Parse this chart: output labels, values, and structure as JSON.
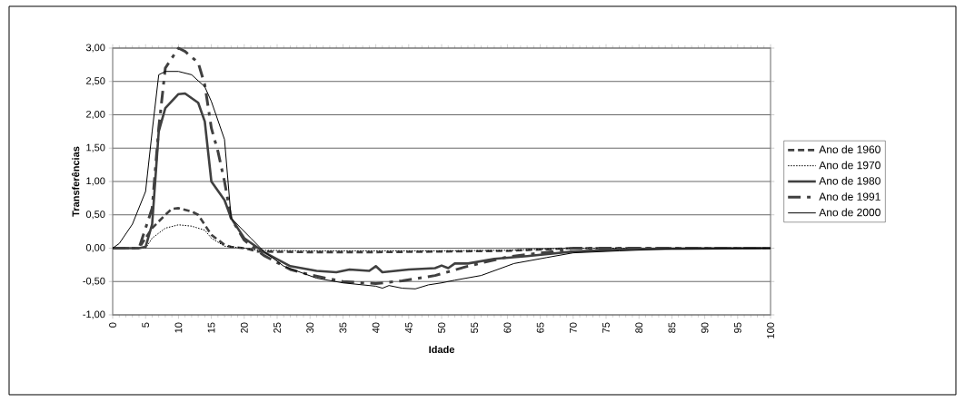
{
  "chart_data": {
    "type": "line",
    "xlabel": "Idade",
    "ylabel": "Transferências",
    "xlim": [
      0,
      100
    ],
    "xticks": [
      0,
      5,
      10,
      15,
      20,
      25,
      30,
      35,
      40,
      45,
      50,
      55,
      60,
      65,
      70,
      75,
      80,
      85,
      90,
      95,
      100
    ],
    "ylim": [
      -1,
      3
    ],
    "yticks": [
      {
        "value": -1,
        "label": "-1,00"
      },
      {
        "value": -0.5,
        "label": "-0,50"
      },
      {
        "value": 0,
        "label": "0,00"
      },
      {
        "value": 0.5,
        "label": "0,50"
      },
      {
        "value": 1,
        "label": "1,00"
      },
      {
        "value": 1.5,
        "label": "1,50"
      },
      {
        "value": 2,
        "label": "2,00"
      },
      {
        "value": 2.5,
        "label": "2,50"
      },
      {
        "value": 3,
        "label": "3,00"
      }
    ],
    "grid": "y",
    "legend": "right",
    "marker": "none",
    "series": [
      {
        "name": "Ano de 1960",
        "color": "#404040",
        "line_style": "dashed",
        "x": [
          0,
          4,
          6,
          8,
          9,
          10,
          12,
          13,
          15,
          17,
          18,
          20,
          22,
          30,
          40,
          50,
          60,
          65,
          70,
          100
        ],
        "values": [
          0,
          0,
          0.3,
          0.5,
          0.59,
          0.6,
          0.55,
          0.5,
          0.2,
          0.05,
          0.02,
          0,
          -0.05,
          -0.06,
          -0.06,
          -0.05,
          -0.04,
          -0.02,
          0,
          0
        ]
      },
      {
        "name": "Ano de 1970",
        "color": "#000000",
        "line_style": "dotted",
        "x": [
          0,
          5,
          6,
          8,
          10,
          12,
          14,
          15,
          17,
          20,
          22,
          30,
          40,
          50,
          60,
          70,
          100
        ],
        "values": [
          0,
          0,
          0.15,
          0.3,
          0.35,
          0.33,
          0.27,
          0.15,
          0.03,
          0,
          -0.03,
          -0.04,
          -0.04,
          -0.04,
          -0.03,
          0,
          0
        ]
      },
      {
        "name": "Ano de 1980",
        "color": "#404040",
        "line_style": "solid",
        "x": [
          0,
          4,
          5,
          6,
          7,
          8,
          10,
          11,
          13,
          14,
          15,
          17,
          18,
          20,
          23,
          27,
          31,
          34,
          36,
          39,
          40,
          41,
          45,
          49,
          50,
          51,
          52,
          54,
          58,
          63,
          70,
          80,
          100
        ],
        "values": [
          0,
          0,
          0.02,
          0.36,
          1.75,
          2.1,
          2.31,
          2.32,
          2.18,
          1.9,
          1.0,
          0.72,
          0.45,
          0.15,
          -0.06,
          -0.27,
          -0.34,
          -0.36,
          -0.32,
          -0.34,
          -0.27,
          -0.36,
          -0.32,
          -0.3,
          -0.26,
          -0.3,
          -0.23,
          -0.23,
          -0.16,
          -0.12,
          -0.05,
          -0.01,
          0
        ]
      },
      {
        "name": "Ano de 1991",
        "color": "#404040",
        "line_style": "dashed",
        "x": [
          0,
          4,
          5,
          6,
          7,
          8,
          10,
          11,
          13,
          14,
          15,
          16,
          17,
          18,
          20,
          23,
          27,
          30,
          35,
          40,
          44,
          49,
          54,
          60,
          67,
          70,
          80,
          100
        ],
        "values": [
          0,
          0,
          0.3,
          0.6,
          1.8,
          2.7,
          3.0,
          2.95,
          2.78,
          2.45,
          1.8,
          1.45,
          1.0,
          0.45,
          0.12,
          -0.11,
          -0.32,
          -0.4,
          -0.5,
          -0.53,
          -0.49,
          -0.41,
          -0.27,
          -0.13,
          -0.05,
          0,
          0,
          0
        ]
      },
      {
        "name": "Ano de 2000",
        "color": "#000000",
        "line_style": "solid",
        "x": [
          0,
          1,
          3,
          5,
          6,
          7,
          8,
          10,
          12,
          14,
          15,
          17,
          18,
          21,
          23,
          26,
          31,
          35,
          40,
          41,
          42,
          44,
          46,
          48,
          50,
          52,
          56,
          61,
          66,
          70,
          77,
          85,
          100
        ],
        "values": [
          0,
          0.07,
          0.36,
          0.85,
          1.75,
          2.6,
          2.65,
          2.65,
          2.6,
          2.42,
          2.2,
          1.63,
          0.45,
          0.15,
          -0.05,
          -0.27,
          -0.45,
          -0.52,
          -0.57,
          -0.6,
          -0.56,
          -0.6,
          -0.61,
          -0.55,
          -0.52,
          -0.48,
          -0.41,
          -0.23,
          -0.14,
          -0.07,
          -0.04,
          -0.01,
          0
        ]
      }
    ]
  }
}
